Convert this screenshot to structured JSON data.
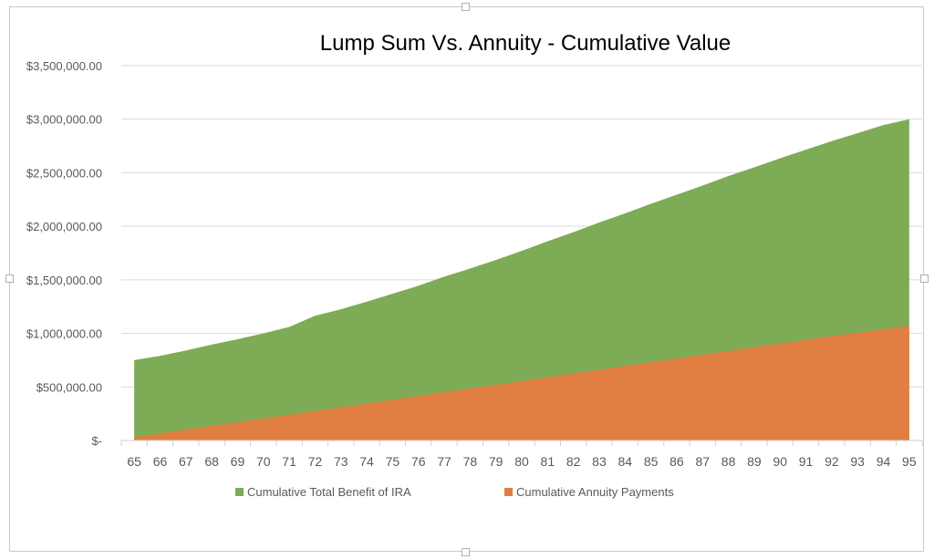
{
  "chart_data": {
    "type": "area",
    "title": "Lump Sum Vs. Annuity - Cumulative Value",
    "xlabel": "",
    "ylabel": "",
    "categories": [
      "65",
      "66",
      "67",
      "68",
      "69",
      "70",
      "71",
      "72",
      "73",
      "74",
      "75",
      "76",
      "77",
      "78",
      "79",
      "80",
      "81",
      "82",
      "83",
      "84",
      "85",
      "86",
      "87",
      "88",
      "89",
      "90",
      "91",
      "92",
      "93",
      "94",
      "95"
    ],
    "ylim": [
      0,
      3500000
    ],
    "yticks": [
      0,
      500000,
      1000000,
      1500000,
      2000000,
      2500000,
      3000000,
      3500000
    ],
    "ytick_labels": [
      "$-",
      "$500,000.00",
      "$1,000,000.00",
      "$1,500,000.00",
      "$2,000,000.00",
      "$2,500,000.00",
      "$3,000,000.00",
      "$3,500,000.00"
    ],
    "grid": true,
    "legend_position": "bottom",
    "series": [
      {
        "name": "Cumulative Total Benefit of IRA",
        "color": "#7eab55",
        "values": [
          750000,
          790000,
          840000,
          895000,
          945000,
          1000000,
          1060000,
          1165000,
          1225000,
          1295000,
          1370000,
          1445000,
          1530000,
          1605000,
          1685000,
          1770000,
          1860000,
          1945000,
          2035000,
          2120000,
          2210000,
          2295000,
          2380000,
          2470000,
          2550000,
          2635000,
          2715000,
          2795000,
          2870000,
          2945000,
          3000000
        ]
      },
      {
        "name": "Cumulative Annuity Payments",
        "color": "#e07f41",
        "values": [
          30000,
          65000,
          100000,
          135000,
          170000,
          205000,
          240000,
          275000,
          310000,
          345000,
          380000,
          415000,
          450000,
          485000,
          520000,
          555000,
          590000,
          625000,
          660000,
          695000,
          730000,
          765000,
          800000,
          835000,
          870000,
          905000,
          940000,
          975000,
          1005000,
          1040000,
          1070000
        ]
      }
    ]
  }
}
